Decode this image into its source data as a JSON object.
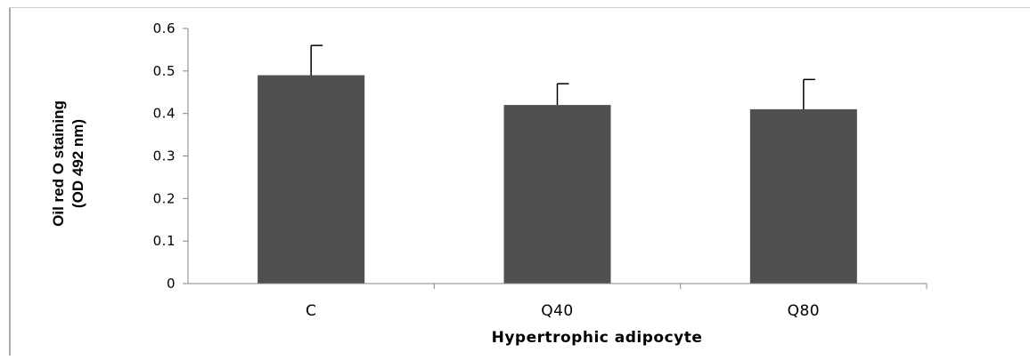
{
  "chart_data": {
    "type": "bar",
    "title": "",
    "categories": [
      "C",
      "Q40",
      "Q80"
    ],
    "values": [
      0.49,
      0.42,
      0.41
    ],
    "error_upper": [
      0.56,
      0.47,
      0.48
    ],
    "xlabel": "Hypertrophic adipocyte",
    "ylabel_lines": [
      "Oil red O staining",
      "(OD 492 nm)"
    ],
    "ylim": [
      0,
      0.6
    ],
    "yticks": [
      "0",
      "0.1",
      "0.2",
      "0.3",
      "0.4",
      "0.5",
      "0.6"
    ],
    "grid": false,
    "legend": "none",
    "bar_color": "#505050"
  }
}
